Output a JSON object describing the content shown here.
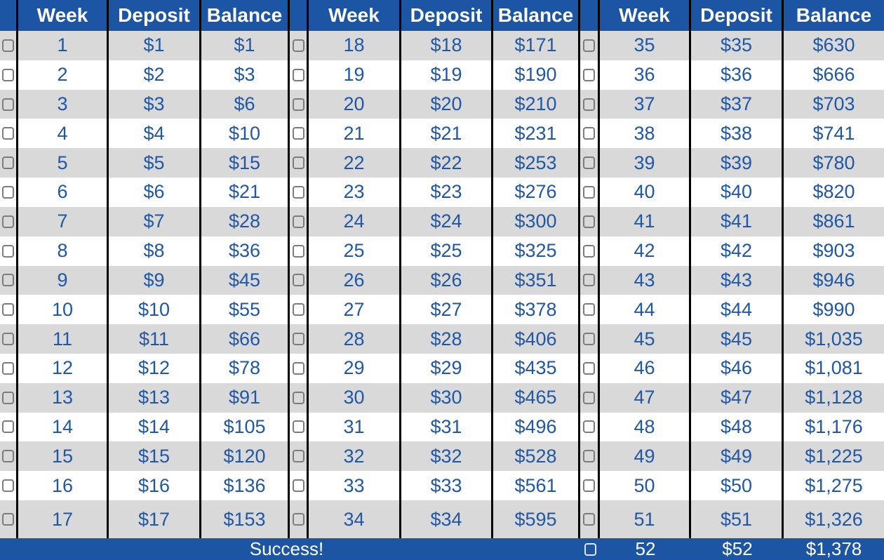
{
  "table": {
    "header_labels": [
      "Week",
      "Deposit",
      "Balance"
    ],
    "groups": [
      {
        "rows": [
          {
            "week": "1",
            "deposit": "$1",
            "balance": "$1"
          },
          {
            "week": "2",
            "deposit": "$2",
            "balance": "$3"
          },
          {
            "week": "3",
            "deposit": "$3",
            "balance": "$6"
          },
          {
            "week": "4",
            "deposit": "$4",
            "balance": "$10"
          },
          {
            "week": "5",
            "deposit": "$5",
            "balance": "$15"
          },
          {
            "week": "6",
            "deposit": "$6",
            "balance": "$21"
          },
          {
            "week": "7",
            "deposit": "$7",
            "balance": "$28"
          },
          {
            "week": "8",
            "deposit": "$8",
            "balance": "$36"
          },
          {
            "week": "9",
            "deposit": "$9",
            "balance": "$45"
          },
          {
            "week": "10",
            "deposit": "$10",
            "balance": "$55"
          },
          {
            "week": "11",
            "deposit": "$11",
            "balance": "$66"
          },
          {
            "week": "12",
            "deposit": "$12",
            "balance": "$78"
          },
          {
            "week": "13",
            "deposit": "$13",
            "balance": "$91"
          },
          {
            "week": "14",
            "deposit": "$14",
            "balance": "$105"
          },
          {
            "week": "15",
            "deposit": "$15",
            "balance": "$120"
          },
          {
            "week": "16",
            "deposit": "$16",
            "balance": "$136"
          },
          {
            "week": "17",
            "deposit": "$17",
            "balance": "$153"
          }
        ]
      },
      {
        "rows": [
          {
            "week": "18",
            "deposit": "$18",
            "balance": "$171"
          },
          {
            "week": "19",
            "deposit": "$19",
            "balance": "$190"
          },
          {
            "week": "20",
            "deposit": "$20",
            "balance": "$210"
          },
          {
            "week": "21",
            "deposit": "$21",
            "balance": "$231"
          },
          {
            "week": "22",
            "deposit": "$22",
            "balance": "$253"
          },
          {
            "week": "23",
            "deposit": "$23",
            "balance": "$276"
          },
          {
            "week": "24",
            "deposit": "$24",
            "balance": "$300"
          },
          {
            "week": "25",
            "deposit": "$25",
            "balance": "$325"
          },
          {
            "week": "26",
            "deposit": "$26",
            "balance": "$351"
          },
          {
            "week": "27",
            "deposit": "$27",
            "balance": "$378"
          },
          {
            "week": "28",
            "deposit": "$28",
            "balance": "$406"
          },
          {
            "week": "29",
            "deposit": "$29",
            "balance": "$435"
          },
          {
            "week": "30",
            "deposit": "$30",
            "balance": "$465"
          },
          {
            "week": "31",
            "deposit": "$31",
            "balance": "$496"
          },
          {
            "week": "32",
            "deposit": "$32",
            "balance": "$528"
          },
          {
            "week": "33",
            "deposit": "$33",
            "balance": "$561"
          },
          {
            "week": "34",
            "deposit": "$34",
            "balance": "$595"
          }
        ]
      },
      {
        "rows": [
          {
            "week": "35",
            "deposit": "$35",
            "balance": "$630"
          },
          {
            "week": "36",
            "deposit": "$36",
            "balance": "$666"
          },
          {
            "week": "37",
            "deposit": "$37",
            "balance": "$703"
          },
          {
            "week": "38",
            "deposit": "$38",
            "balance": "$741"
          },
          {
            "week": "39",
            "deposit": "$39",
            "balance": "$780"
          },
          {
            "week": "40",
            "deposit": "$40",
            "balance": "$820"
          },
          {
            "week": "41",
            "deposit": "$41",
            "balance": "$861"
          },
          {
            "week": "42",
            "deposit": "$42",
            "balance": "$903"
          },
          {
            "week": "43",
            "deposit": "$43",
            "balance": "$946"
          },
          {
            "week": "44",
            "deposit": "$44",
            "balance": "$990"
          },
          {
            "week": "45",
            "deposit": "$45",
            "balance": "$1,035"
          },
          {
            "week": "46",
            "deposit": "$46",
            "balance": "$1,081"
          },
          {
            "week": "47",
            "deposit": "$47",
            "balance": "$1,128"
          },
          {
            "week": "48",
            "deposit": "$48",
            "balance": "$1,176"
          },
          {
            "week": "49",
            "deposit": "$49",
            "balance": "$1,225"
          },
          {
            "week": "50",
            "deposit": "$50",
            "balance": "$1,275"
          },
          {
            "week": "51",
            "deposit": "$51",
            "balance": "$1,326"
          }
        ]
      }
    ],
    "footer": {
      "success_label": "Success!",
      "week": "52",
      "deposit": "$52",
      "balance": "$1,378"
    }
  },
  "colors": {
    "header_blue": "#1c55a3",
    "text_blue": "#2057a7",
    "row_gray": "#d9d9d9",
    "row_white": "#ffffff",
    "line_black": "#000000"
  }
}
